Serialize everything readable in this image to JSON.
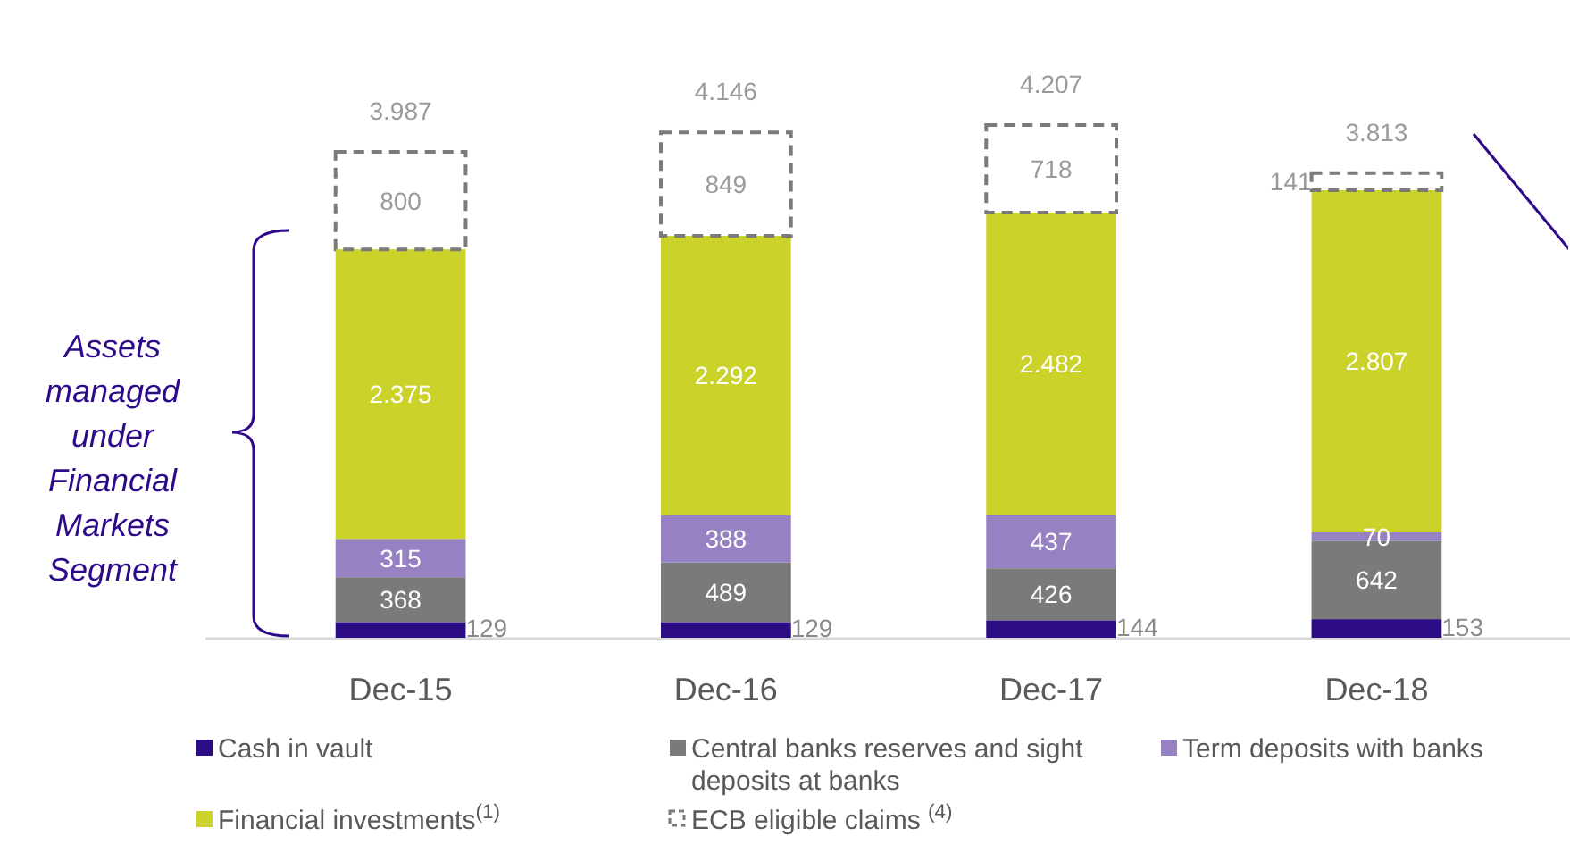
{
  "chart_data": {
    "type": "bar",
    "stacked": true,
    "categories": [
      "Dec-15",
      "Dec-16",
      "Dec-17",
      "Dec-18"
    ],
    "series": [
      {
        "name": "Cash in vault",
        "color": "#2b0c84",
        "values": [
          129,
          129,
          144,
          153
        ],
        "value_labels": [
          "129",
          "129",
          "144",
          "153"
        ]
      },
      {
        "name": "Central banks reserves and sight deposits at banks",
        "color": "#7a7a7a",
        "values": [
          368,
          489,
          426,
          642
        ],
        "value_labels": [
          "368",
          "489",
          "426",
          "642"
        ]
      },
      {
        "name": "Term deposits with banks",
        "color": "#9682c2",
        "values": [
          315,
          388,
          437,
          70
        ],
        "value_labels": [
          "315",
          "388",
          "437",
          "70"
        ]
      },
      {
        "name": "Financial investments$^{(1)}$",
        "color": "#cbd32a",
        "values": [
          2375,
          2292,
          2482,
          2807
        ],
        "value_labels": [
          "2.375",
          "2.292",
          "2.482",
          "2.807"
        ]
      },
      {
        "name": "ECB eligible claims $^{(4)}$",
        "color": "#7a7a7a",
        "line_style": "dashed",
        "values": [
          800,
          849,
          718,
          141
        ],
        "value_labels": [
          "800",
          "849",
          "718",
          "141"
        ]
      }
    ],
    "totals": [
      "3.987",
      "4.146",
      "4.207",
      "3.813"
    ],
    "annotations": [
      "Assets managed under Financial Markets Segment"
    ],
    "legend": "bottom"
  }
}
